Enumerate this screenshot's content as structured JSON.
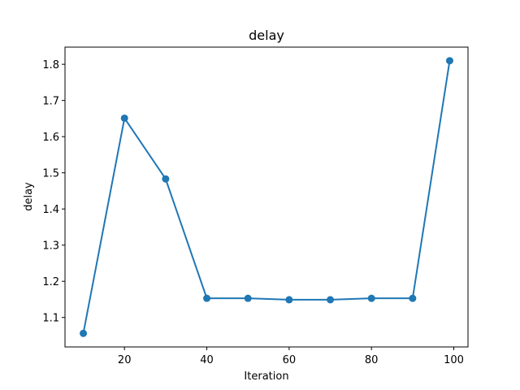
{
  "chart_data": {
    "type": "line",
    "title": "delay",
    "xlabel": "Iteration",
    "ylabel": "delay",
    "xlim": [
      5.55,
      103.45
    ],
    "ylim": [
      1.0185,
      1.8475
    ],
    "xticks": [
      20,
      40,
      60,
      80,
      100
    ],
    "yticks": [
      1.1,
      1.2,
      1.3,
      1.4,
      1.5,
      1.6,
      1.7,
      1.8
    ],
    "grid": false,
    "series": [
      {
        "color": "#1f77b4",
        "marker": "circle",
        "x": [
          10,
          20,
          30,
          40,
          50,
          60,
          70,
          80,
          90,
          99
        ],
        "y": [
          1.056,
          1.651,
          1.483,
          1.153,
          1.153,
          1.149,
          1.149,
          1.153,
          1.153,
          1.81
        ]
      }
    ]
  }
}
